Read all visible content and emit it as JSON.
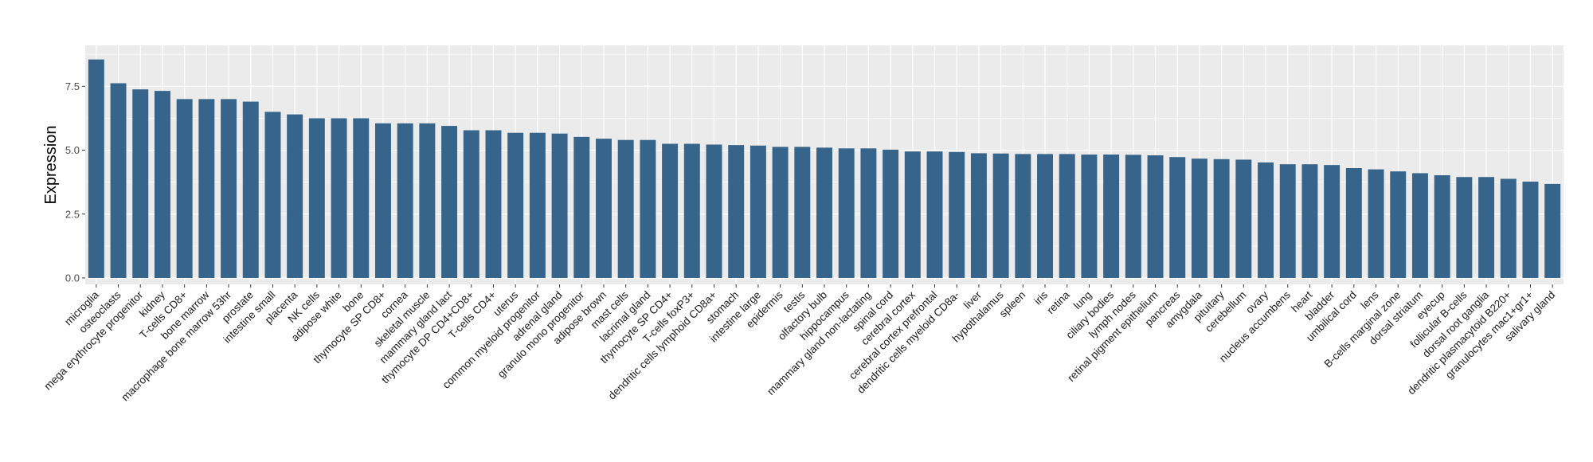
{
  "chart_data": {
    "type": "bar",
    "title": "",
    "xlabel": "",
    "ylabel": "Expression",
    "ylim": [
      -0.25,
      9.1
    ],
    "yticks": [
      0,
      2.5,
      5,
      7.5
    ],
    "ytick_labels": [
      "0.0",
      "2.5",
      "5.0",
      "7.5"
    ],
    "grid": true,
    "colors": {
      "bar": "#36648b",
      "panel": "#ebebeb",
      "grid": "#ffffff"
    },
    "categories": [
      "microglia",
      "osteoclasts",
      "mega erythrocyte progenitor",
      "kidney",
      "T-cells CD8+",
      "bone marrow",
      "macrophage bone marrow 53hr",
      "prostate",
      "intestine small",
      "placenta",
      "NK cells",
      "adipose white",
      "bone",
      "thymocyte SP CD8+",
      "cornea",
      "skeletal muscle",
      "mammary gland  lact",
      "thymocyte DP CD4+CD8+",
      "T-cells CD4+",
      "uterus",
      "common myeloid progenitor",
      "adrenal gland",
      "granulo mono progenitor",
      "adipose brown",
      "mast cells",
      "lacrimal gland",
      "thymocyte SP CD4+",
      "T-cells foxP3+",
      "dendritic cells lymphoid CD8a+",
      "stomach",
      "intestine large",
      "epidermis",
      "testis",
      "olfactory bulb",
      "hippocampus",
      "mammary gland non-lactating",
      "spinal cord",
      "cerebral cortex",
      "cerebral cortex prefrontal",
      "dendritic cells myeloid CD8a-",
      "liver",
      "hypothalamus",
      "spleen",
      "iris",
      "retina",
      "lung",
      "ciliary bodies",
      "lymph nodes",
      "retinal pigment epithelium",
      "pancreas",
      "amygdala",
      "pituitary",
      "cerebellum",
      "ovary",
      "nucleus accumbens",
      "heart",
      "bladder",
      "umbilical cord",
      "lens",
      "B-cells marginal zone",
      "dorsal striatum",
      "eyecup",
      "follicular B-cells",
      "dorsal root ganglia",
      "dendritic plasmacytoid B220+",
      "granulocytes mac1+gr1+",
      "salivary gland"
    ],
    "values": [
      8.55,
      7.62,
      7.38,
      7.32,
      7.0,
      7.0,
      7.0,
      6.9,
      6.5,
      6.4,
      6.25,
      6.25,
      6.25,
      6.05,
      6.05,
      6.05,
      5.95,
      5.78,
      5.78,
      5.68,
      5.68,
      5.65,
      5.52,
      5.45,
      5.4,
      5.4,
      5.25,
      5.25,
      5.22,
      5.2,
      5.18,
      5.13,
      5.13,
      5.1,
      5.07,
      5.07,
      5.02,
      4.95,
      4.95,
      4.93,
      4.88,
      4.87,
      4.85,
      4.85,
      4.85,
      4.83,
      4.83,
      4.82,
      4.8,
      4.73,
      4.67,
      4.65,
      4.63,
      4.52,
      4.45,
      4.45,
      4.42,
      4.3,
      4.25,
      4.17,
      4.1,
      4.02,
      3.95,
      3.95,
      3.88,
      3.77,
      3.68
    ]
  }
}
